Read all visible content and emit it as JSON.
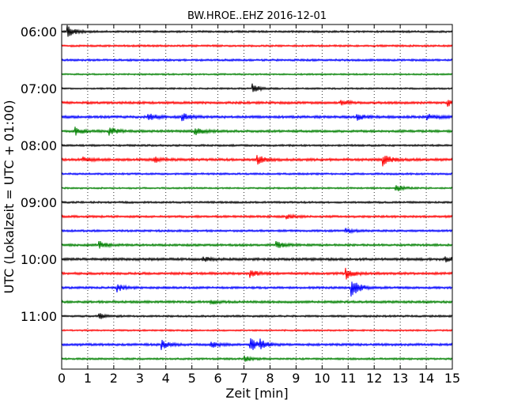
{
  "chart_data": {
    "type": "line",
    "subtype": "helicorder",
    "title": "BW.HROE..EHZ 2016-12-01",
    "xlabel": "Zeit  [min]",
    "ylabel": "UTC (Lokalzeit = UTC + 01:00)",
    "xlim": [
      0,
      15
    ],
    "x_ticks": [
      "0",
      "1",
      "2",
      "3",
      "4",
      "5",
      "6",
      "7",
      "8",
      "9",
      "10",
      "11",
      "12",
      "13",
      "14",
      "15"
    ],
    "y_ticks": [
      "06:00",
      "07:00",
      "08:00",
      "09:00",
      "10:00",
      "11:00"
    ],
    "grid": "vertical dotted at each minute",
    "trace_colors": [
      "#000000",
      "#ff0000",
      "#0000ff",
      "#008000"
    ],
    "rows": [
      {
        "amp": 1.2,
        "events": [
          {
            "t": 0.2,
            "a": 8
          }
        ]
      },
      {
        "amp": 1.2,
        "events": []
      },
      {
        "amp": 1.3,
        "events": []
      },
      {
        "amp": 1.0,
        "events": []
      },
      {
        "amp": 1.0,
        "events": [
          {
            "t": 7.3,
            "a": 6
          }
        ]
      },
      {
        "amp": 1.5,
        "events": [
          {
            "t": 10.7,
            "a": 4
          },
          {
            "t": 14.8,
            "a": 4
          }
        ]
      },
      {
        "amp": 1.6,
        "events": [
          {
            "t": 3.3,
            "a": 5
          },
          {
            "t": 4.6,
            "a": 5
          },
          {
            "t": 11.3,
            "a": 5
          },
          {
            "t": 14.0,
            "a": 5
          }
        ]
      },
      {
        "amp": 1.5,
        "events": [
          {
            "t": 0.5,
            "a": 5
          },
          {
            "t": 1.8,
            "a": 6
          },
          {
            "t": 5.1,
            "a": 6
          }
        ]
      },
      {
        "amp": 1.2,
        "events": []
      },
      {
        "amp": 1.6,
        "events": [
          {
            "t": 0.8,
            "a": 3
          },
          {
            "t": 3.5,
            "a": 4
          },
          {
            "t": 7.5,
            "a": 6
          },
          {
            "t": 12.3,
            "a": 8
          }
        ]
      },
      {
        "amp": 1.2,
        "events": []
      },
      {
        "amp": 1.0,
        "events": [
          {
            "t": 12.8,
            "a": 5
          }
        ]
      },
      {
        "amp": 1.2,
        "events": []
      },
      {
        "amp": 1.4,
        "events": [
          {
            "t": 8.6,
            "a": 3
          }
        ]
      },
      {
        "amp": 1.3,
        "events": [
          {
            "t": 10.9,
            "a": 3
          }
        ]
      },
      {
        "amp": 1.4,
        "events": [
          {
            "t": 1.4,
            "a": 5
          },
          {
            "t": 8.2,
            "a": 5
          }
        ]
      },
      {
        "amp": 1.6,
        "events": [
          {
            "t": 5.4,
            "a": 3
          },
          {
            "t": 14.7,
            "a": 4
          }
        ]
      },
      {
        "amp": 1.5,
        "events": [
          {
            "t": 7.2,
            "a": 5
          },
          {
            "t": 10.9,
            "a": 7
          }
        ]
      },
      {
        "amp": 1.4,
        "events": [
          {
            "t": 2.1,
            "a": 5
          },
          {
            "t": 11.1,
            "a": 14
          }
        ]
      },
      {
        "amp": 1.5,
        "events": [
          {
            "t": 5.7,
            "a": 3
          }
        ]
      },
      {
        "amp": 1.2,
        "events": [
          {
            "t": 1.4,
            "a": 4
          }
        ]
      },
      {
        "amp": 1.0,
        "events": []
      },
      {
        "amp": 1.5,
        "events": [
          {
            "t": 3.8,
            "a": 6
          },
          {
            "t": 5.7,
            "a": 4
          },
          {
            "t": 7.2,
            "a": 10
          },
          {
            "t": 7.6,
            "a": 5
          }
        ]
      },
      {
        "amp": 1.2,
        "events": [
          {
            "t": 7.0,
            "a": 4
          }
        ]
      }
    ]
  }
}
